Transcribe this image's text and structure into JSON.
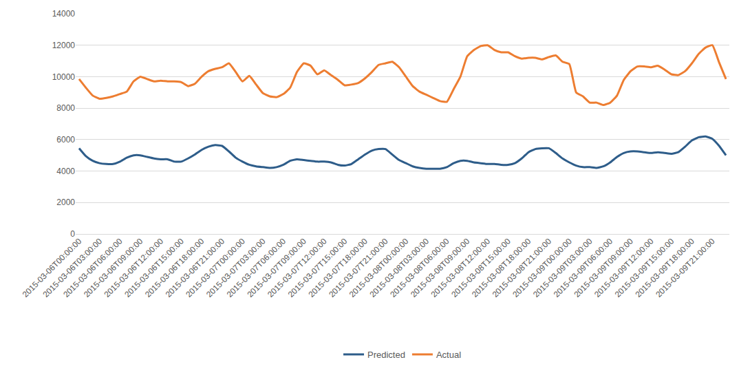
{
  "chart_data": {
    "type": "line",
    "categories": [
      "2015-03-06T00:00:00",
      null,
      null,
      "2015-03-06T03:00:00",
      null,
      null,
      "2015-03-06T06:00:00",
      null,
      null,
      "2015-03-06T09:00:00",
      null,
      null,
      "2015-03-06T12:00:00",
      null,
      null,
      "2015-03-06T15:00:00",
      null,
      null,
      "2015-03-06T18:00:00",
      null,
      null,
      "2015-03-06T21:00:00",
      null,
      null,
      "2015-03-07T00:00:00",
      null,
      null,
      "2015-03-07T03:00:00",
      null,
      null,
      "2015-03-07T06:00:00",
      null,
      null,
      "2015-03-07T09:00:00",
      null,
      null,
      "2015-03-07T12:00:00",
      null,
      null,
      "2015-03-07T15:00:00",
      null,
      null,
      "2015-03-07T18:00:00",
      null,
      null,
      "2015-03-07T21:00:00",
      null,
      null,
      "2015-03-08T00:00:00",
      null,
      null,
      "2015-03-08T03:00:00",
      null,
      null,
      "2015-03-08T06:00:00",
      null,
      null,
      "2015-03-08T09:00:00",
      null,
      null,
      "2015-03-08T12:00:00",
      null,
      null,
      "2015-03-08T15:00:00",
      null,
      null,
      "2015-03-08T18:00:00",
      null,
      null,
      "2015-03-08T21:00:00",
      null,
      null,
      "2015-03-09T00:00:00",
      null,
      null,
      "2015-03-09T03:00:00",
      null,
      null,
      "2015-03-09T06:00:00",
      null,
      null,
      "2015-03-09T09:00:00",
      null,
      null,
      "2015-03-09T12:00:00",
      null,
      null,
      "2015-03-09T15:00:00",
      null,
      null,
      "2015-03-09T18:00:00",
      null,
      null,
      "2015-03-09T21:00:00",
      null,
      null
    ],
    "series": [
      {
        "name": "Predicted",
        "color": "#2e5d8a",
        "values": [
          5450,
          4950,
          4650,
          4500,
          4450,
          4450,
          4600,
          4850,
          5000,
          5000,
          4900,
          4800,
          4750,
          4750,
          4600,
          4600,
          4800,
          5050,
          5350,
          5550,
          5650,
          5600,
          5250,
          4850,
          4600,
          4400,
          4300,
          4250,
          4200,
          4250,
          4400,
          4650,
          4750,
          4700,
          4650,
          4600,
          4600,
          4550,
          4400,
          4350,
          4450,
          4750,
          5050,
          5300,
          5400,
          5400,
          5050,
          4700,
          4500,
          4300,
          4200,
          4150,
          4150,
          4150,
          4250,
          4500,
          4650,
          4650,
          4550,
          4500,
          4450,
          4450,
          4400,
          4400,
          4500,
          4800,
          5200,
          5400,
          5450,
          5450,
          5150,
          4800,
          4550,
          4350,
          4250,
          4250,
          4200,
          4300,
          4550,
          4900,
          5150,
          5250,
          5250,
          5200,
          5150,
          5200,
          5150,
          5100,
          5200,
          5550,
          5950,
          6150,
          6200,
          6050,
          5600,
          5000
        ]
      },
      {
        "name": "Actual",
        "color": "#ed7d31",
        "values": [
          9850,
          9300,
          8800,
          8600,
          8650,
          8750,
          8900,
          9050,
          9700,
          10000,
          9850,
          9700,
          9750,
          9700,
          9700,
          9650,
          9400,
          9550,
          10000,
          10350,
          10500,
          10600,
          10850,
          10300,
          9700,
          10050,
          9500,
          8950,
          8750,
          8700,
          8900,
          9300,
          10300,
          10850,
          10700,
          10150,
          10400,
          10100,
          9800,
          9450,
          9500,
          9600,
          9900,
          10300,
          10750,
          10850,
          10950,
          10600,
          10000,
          9400,
          9050,
          8850,
          8650,
          8450,
          8400,
          9200,
          10000,
          11300,
          11700,
          11950,
          12000,
          11700,
          11550,
          11550,
          11300,
          11150,
          11200,
          11200,
          11100,
          11250,
          11350,
          10950,
          10800,
          9000,
          8750,
          8350,
          8350,
          8200,
          8350,
          8800,
          9800,
          10350,
          10650,
          10650,
          10600,
          10700,
          10450,
          10150,
          10100,
          10350,
          10850,
          11450,
          11850,
          12000,
          10900,
          9850
        ]
      }
    ],
    "ylim": [
      0,
      14000
    ],
    "yticks": [
      0,
      2000,
      4000,
      6000,
      8000,
      10000,
      12000,
      14000
    ],
    "grid": true,
    "legend": "bottom"
  }
}
